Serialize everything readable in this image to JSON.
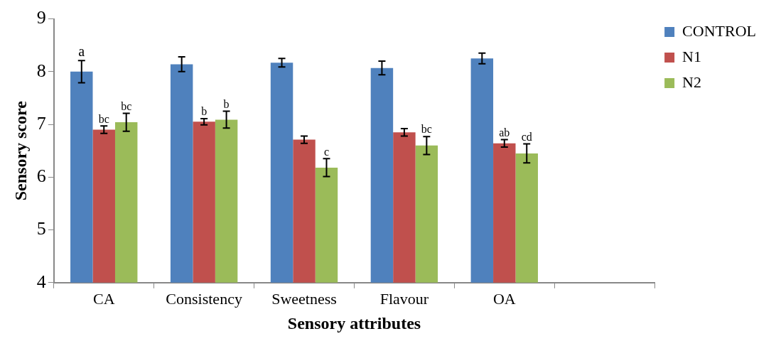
{
  "chart_data": {
    "type": "bar",
    "xlabel": "Sensory attributes",
    "ylabel": "Sensory score",
    "categories": [
      "CA",
      "Consistency",
      "Sweetness",
      "Flavour",
      "OA",
      null
    ],
    "series": [
      {
        "name": "CONTROL",
        "color": "#4f81bd",
        "values": [
          8.0,
          8.14,
          8.17,
          8.07,
          8.25,
          null
        ],
        "errors": [
          0.21,
          0.14,
          0.08,
          0.13,
          0.1,
          null
        ],
        "value_labels": [
          "a",
          null,
          null,
          null,
          null,
          null
        ]
      },
      {
        "name": "N1",
        "color": "#c0504d",
        "values": [
          6.9,
          7.05,
          6.71,
          6.85,
          6.64,
          null
        ],
        "errors": [
          0.07,
          0.06,
          0.07,
          0.07,
          0.07,
          null
        ],
        "value_labels": [
          "bc",
          "b",
          null,
          null,
          "ab",
          null
        ]
      },
      {
        "name": "N2",
        "color": "#9bbb59",
        "values": [
          7.04,
          7.09,
          6.18,
          6.6,
          6.45,
          null
        ],
        "errors": [
          0.17,
          0.16,
          0.17,
          0.17,
          0.18,
          null
        ],
        "value_labels": [
          "bc",
          "b",
          "c",
          "bc",
          "cd",
          null
        ]
      }
    ],
    "ylim": [
      4,
      9
    ],
    "yticks": [
      4,
      5,
      6,
      7,
      8,
      9
    ],
    "grid": false,
    "legend": "top right"
  }
}
